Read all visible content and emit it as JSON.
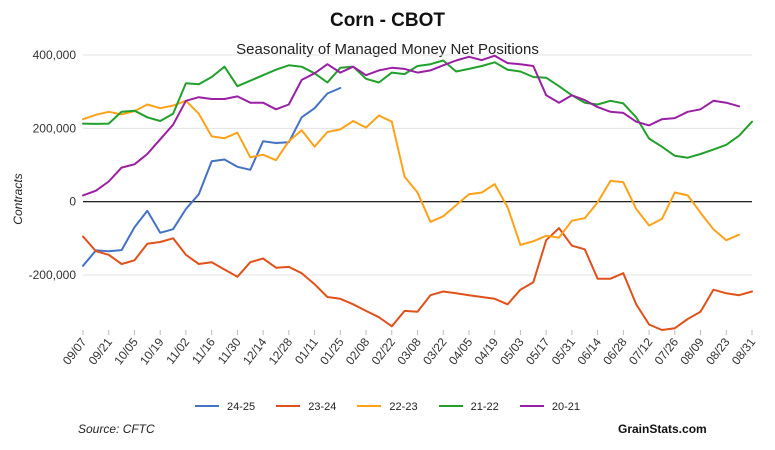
{
  "chart_data": {
    "type": "line",
    "title": "Corn - CBOT",
    "subtitle": "Seasonality of Managed Money Net Positions",
    "ylabel": "Contracts",
    "xlabel": "",
    "ylim": [
      -350000,
      400000
    ],
    "yticks": [
      400000,
      200000,
      0,
      -200000
    ],
    "ytick_labels": [
      "400,000",
      "200,000",
      "0",
      "-200,000"
    ],
    "xtick_labels": [
      "09/07",
      "09/21",
      "10/05",
      "10/19",
      "11/02",
      "11/16",
      "11/30",
      "12/14",
      "12/28",
      "01/11",
      "01/25",
      "02/08",
      "02/22",
      "03/08",
      "03/22",
      "04/05",
      "04/19",
      "05/03",
      "05/17",
      "05/31",
      "06/14",
      "06/28",
      "07/12",
      "07/26",
      "08/09",
      "08/23",
      "08/31"
    ],
    "series": [
      {
        "name": "24-25",
        "color": "#4472c4",
        "values": [
          -175000,
          -133000,
          -135000,
          -132000,
          -70000,
          -25000,
          -85000,
          -75000,
          -20000,
          20000,
          110000,
          115000,
          95000,
          87000,
          165000,
          160000,
          162000,
          230000,
          255000,
          295000,
          310000
        ]
      },
      {
        "name": "23-24",
        "color": "#e0511b",
        "values": [
          -95000,
          -135000,
          -145000,
          -170000,
          -160000,
          -115000,
          -110000,
          -100000,
          -145000,
          -170000,
          -165000,
          -185000,
          -205000,
          -165000,
          -155000,
          -180000,
          -178000,
          -195000,
          -225000,
          -260000,
          -265000,
          -280000,
          -298000,
          -315000,
          -340000,
          -298000,
          -300000,
          -255000,
          -245000,
          -250000,
          -255000,
          -260000,
          -265000,
          -280000,
          -240000,
          -220000,
          -105000,
          -72000,
          -120000,
          -130000,
          -210000,
          -210000,
          -195000,
          -280000,
          -335000,
          -350000,
          -345000,
          -320000,
          -300000,
          -240000,
          -250000,
          -255000,
          -245000
        ]
      },
      {
        "name": "22-23",
        "color": "#ffa21a",
        "values": [
          225000,
          237000,
          245000,
          238000,
          247000,
          265000,
          255000,
          262000,
          275000,
          240000,
          178000,
          173000,
          188000,
          121000,
          128000,
          113000,
          165000,
          195000,
          150000,
          190000,
          197000,
          220000,
          202000,
          235000,
          218000,
          68000,
          25000,
          -55000,
          -40000,
          -10000,
          20000,
          25000,
          48000,
          -15000,
          -118000,
          -108000,
          -93000,
          -98000,
          -52000,
          -45000,
          -2000,
          57000,
          53000,
          -20000,
          -65000,
          -47000,
          25000,
          17000,
          -30000,
          -75000,
          -105000,
          -90000
        ]
      },
      {
        "name": "21-22",
        "color": "#22a02c",
        "values": [
          213000,
          212000,
          213000,
          245000,
          248000,
          230000,
          220000,
          240000,
          323000,
          320000,
          340000,
          368000,
          315000,
          330000,
          345000,
          360000,
          372000,
          368000,
          350000,
          325000,
          365000,
          368000,
          335000,
          325000,
          352000,
          348000,
          370000,
          375000,
          385000,
          355000,
          362000,
          370000,
          380000,
          360000,
          355000,
          340000,
          338000,
          315000,
          290000,
          270000,
          265000,
          275000,
          268000,
          230000,
          172000,
          150000,
          125000,
          120000,
          130000,
          142000,
          155000,
          180000,
          218000
        ]
      },
      {
        "name": "20-21",
        "color": "#9b1fa5",
        "values": [
          17000,
          30000,
          55000,
          93000,
          102000,
          130000,
          170000,
          210000,
          275000,
          285000,
          280000,
          280000,
          287000,
          270000,
          270000,
          252000,
          265000,
          332000,
          350000,
          375000,
          352000,
          368000,
          345000,
          358000,
          365000,
          362000,
          352000,
          358000,
          372000,
          385000,
          395000,
          386000,
          398000,
          378000,
          375000,
          370000,
          290000,
          270000,
          290000,
          277000,
          258000,
          245000,
          242000,
          218000,
          208000,
          225000,
          228000,
          245000,
          252000,
          275000,
          270000,
          260000
        ]
      }
    ]
  },
  "legend": {
    "items": [
      "24-25",
      "23-24",
      "22-23",
      "21-22",
      "20-21"
    ]
  },
  "footer": {
    "source": "Source: CFTC",
    "brand": "GrainStats.com"
  }
}
